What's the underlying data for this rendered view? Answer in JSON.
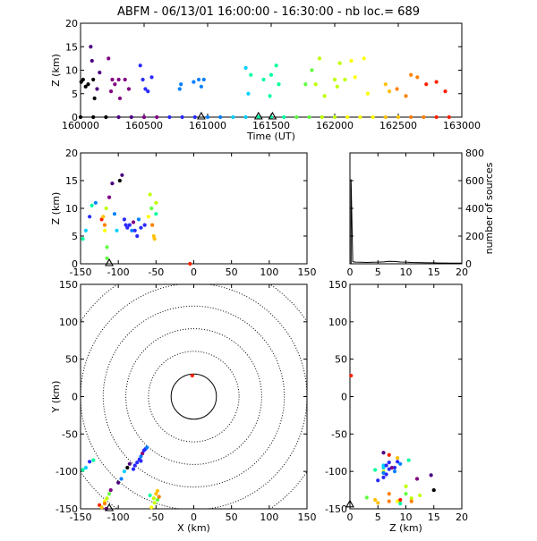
{
  "title": "ABFM - 06/13/01 16:00:00 - 16:30:00 - nb loc.=     689",
  "colors": {
    "palette": [
      "#000000",
      "#4b0082",
      "#800080",
      "#2a2aff",
      "#0080ff",
      "#00d0ff",
      "#00ffa0",
      "#60ff40",
      "#c0ff00",
      "#ffff00",
      "#ffc000",
      "#ff8000",
      "#ff2000"
    ]
  },
  "chart_data": [
    {
      "id": "time_height",
      "type": "scatter",
      "xlabel": "Time (UT)",
      "ylabel": "Z (km)",
      "xlim": [
        160000,
        163000
      ],
      "ylim": [
        0,
        20
      ],
      "xticks": [
        160000,
        160500,
        161000,
        161500,
        162000,
        162500,
        163000
      ],
      "yticks": [
        0,
        5,
        10,
        15,
        20
      ],
      "points": [
        [
          160005,
          7.5,
          0
        ],
        [
          160020,
          8,
          0
        ],
        [
          160040,
          6.5,
          0
        ],
        [
          160060,
          7,
          0
        ],
        [
          160080,
          15,
          1
        ],
        [
          160090,
          12,
          1
        ],
        [
          160100,
          8,
          0
        ],
        [
          160110,
          4,
          0
        ],
        [
          160130,
          6,
          1
        ],
        [
          160150,
          9.5,
          1
        ],
        [
          160220,
          12.5,
          2
        ],
        [
          160240,
          5.5,
          2
        ],
        [
          160250,
          8,
          2
        ],
        [
          160270,
          7,
          2
        ],
        [
          160300,
          8,
          2
        ],
        [
          160310,
          4,
          2
        ],
        [
          160350,
          8,
          2
        ],
        [
          160380,
          6,
          2
        ],
        [
          160470,
          11,
          3
        ],
        [
          160490,
          8,
          3
        ],
        [
          160510,
          6,
          3
        ],
        [
          160530,
          5.5,
          3
        ],
        [
          160560,
          8.5,
          3
        ],
        [
          160780,
          6,
          4
        ],
        [
          160790,
          7,
          4
        ],
        [
          160890,
          7.5,
          4
        ],
        [
          160930,
          8,
          4
        ],
        [
          160950,
          6.5,
          4
        ],
        [
          160970,
          8,
          4
        ],
        [
          161300,
          10.5,
          5
        ],
        [
          161320,
          5,
          5
        ],
        [
          161340,
          9,
          6
        ],
        [
          161440,
          8,
          6
        ],
        [
          161490,
          4.5,
          6
        ],
        [
          161500,
          9,
          6
        ],
        [
          161540,
          11,
          6
        ],
        [
          161560,
          7,
          6
        ],
        [
          161770,
          7,
          7
        ],
        [
          161820,
          10,
          7
        ],
        [
          161850,
          7,
          8
        ],
        [
          161880,
          12.5,
          8
        ],
        [
          161920,
          4.5,
          8
        ],
        [
          162000,
          8,
          8
        ],
        [
          162020,
          6.5,
          8
        ],
        [
          162040,
          11.5,
          8
        ],
        [
          162080,
          8,
          8
        ],
        [
          162130,
          12,
          9
        ],
        [
          162160,
          8.5,
          9
        ],
        [
          162230,
          12.5,
          9
        ],
        [
          162260,
          5,
          9
        ],
        [
          162400,
          7,
          10
        ],
        [
          162430,
          5.5,
          10
        ],
        [
          162490,
          6,
          11
        ],
        [
          162560,
          4.5,
          11
        ],
        [
          162600,
          9,
          11
        ],
        [
          162650,
          8.5,
          11
        ],
        [
          162720,
          7,
          12
        ],
        [
          162800,
          7.5,
          12
        ],
        [
          162870,
          5.5,
          12
        ]
      ],
      "baseline": [
        160000,
        160100,
        160200,
        160300,
        160400,
        160500,
        160600,
        160700,
        160800,
        160900,
        161000,
        161100,
        161200,
        161300,
        161400,
        161500,
        161600,
        161700,
        161800,
        161900,
        162000,
        162100,
        162200,
        162300,
        162400,
        162500,
        162600,
        162700,
        162800,
        162900
      ],
      "markers": [
        [
          160950,
          0
        ],
        [
          161400,
          0
        ],
        [
          161510,
          0
        ]
      ]
    },
    {
      "id": "x_z",
      "type": "scatter",
      "xlabel": "",
      "ylabel": "Z (km)",
      "xlim": [
        -150,
        150
      ],
      "ylim": [
        0,
        20
      ],
      "xticks": [
        -150,
        -100,
        -50,
        0,
        50,
        100,
        150
      ],
      "yticks": [
        0,
        5,
        10,
        15,
        20
      ],
      "points": [
        [
          -147,
          4.5,
          6
        ],
        [
          -143,
          6,
          5
        ],
        [
          -138,
          8.5,
          3
        ],
        [
          -135,
          10.5,
          6
        ],
        [
          -130,
          11,
          4
        ],
        [
          -122,
          8,
          12
        ],
        [
          -120,
          8.5,
          10
        ],
        [
          -118,
          6,
          9
        ],
        [
          -116,
          10,
          8
        ],
        [
          -115,
          3,
          7
        ],
        [
          -118,
          7,
          11
        ],
        [
          -115,
          1,
          7
        ],
        [
          -112,
          12,
          2
        ],
        [
          -108,
          14.5,
          1
        ],
        [
          -105,
          9,
          4
        ],
        [
          -102,
          6,
          5
        ],
        [
          -98,
          15,
          0
        ],
        [
          -95,
          16,
          1
        ],
        [
          -92,
          8,
          3
        ],
        [
          -90,
          7,
          3
        ],
        [
          -88,
          6.5,
          3
        ],
        [
          -85,
          7,
          3
        ],
        [
          -82,
          6,
          4
        ],
        [
          -80,
          7.5,
          2
        ],
        [
          -78,
          6,
          3
        ],
        [
          -75,
          5,
          3
        ],
        [
          -73,
          8,
          4
        ],
        [
          -70,
          6.5,
          3
        ],
        [
          -65,
          7,
          3
        ],
        [
          -60,
          8.5,
          9
        ],
        [
          -58,
          12.5,
          8
        ],
        [
          -56,
          10,
          7
        ],
        [
          -55,
          7,
          11
        ],
        [
          -53,
          5,
          10
        ],
        [
          -52,
          4.5,
          10
        ],
        [
          -50,
          9,
          6
        ],
        [
          -50,
          11,
          8
        ],
        [
          -5,
          0,
          12
        ]
      ],
      "markers": [
        [
          -112,
          0
        ]
      ]
    },
    {
      "id": "histogram",
      "type": "area",
      "xlabel": "",
      "ylabel": "number of sources",
      "xlim": [
        0,
        20
      ],
      "ylim": [
        0,
        800
      ],
      "xticks": [
        0,
        5,
        10,
        15,
        20
      ],
      "yticks": [
        0,
        200,
        400,
        600,
        800
      ],
      "bins": [
        [
          0.2,
          610
        ],
        [
          0.5,
          15
        ],
        [
          1,
          12
        ],
        [
          2,
          11
        ],
        [
          3,
          10
        ],
        [
          4,
          11
        ],
        [
          5,
          12
        ],
        [
          6,
          14
        ],
        [
          7,
          18
        ],
        [
          8,
          17
        ],
        [
          9,
          13
        ],
        [
          10,
          12
        ],
        [
          11,
          10
        ],
        [
          12,
          9
        ],
        [
          13,
          8
        ],
        [
          14,
          7
        ],
        [
          15,
          7
        ],
        [
          16,
          6
        ],
        [
          17,
          6
        ],
        [
          18,
          5
        ],
        [
          19,
          5
        ],
        [
          20,
          5
        ]
      ]
    },
    {
      "id": "x_y",
      "type": "scatter",
      "xlabel": "X (km)",
      "ylabel": "Y (km)",
      "xlim": [
        -150,
        150
      ],
      "ylim": [
        -150,
        150
      ],
      "xticks": [
        -150,
        -100,
        -50,
        0,
        50,
        100,
        150
      ],
      "yticks": [
        -150,
        -100,
        -50,
        0,
        50,
        100,
        150
      ],
      "rings": [
        30,
        60,
        90,
        120,
        150,
        180
      ],
      "points": [
        [
          -147,
          -98,
          6
        ],
        [
          -143,
          -95,
          5
        ],
        [
          -138,
          -87,
          3
        ],
        [
          -133,
          -85,
          6
        ],
        [
          -125,
          -145,
          12
        ],
        [
          -122,
          -148,
          10
        ],
        [
          -118,
          -140,
          9
        ],
        [
          -115,
          -136,
          8
        ],
        [
          -112,
          -130,
          7
        ],
        [
          -118,
          -143,
          11
        ],
        [
          -116,
          -150,
          2
        ],
        [
          -110,
          -125,
          2
        ],
        [
          -100,
          -115,
          1
        ],
        [
          -96,
          -110,
          4
        ],
        [
          -92,
          -100,
          5
        ],
        [
          -88,
          -95,
          0
        ],
        [
          -85,
          -90,
          1
        ],
        [
          -80,
          -97,
          3
        ],
        [
          -78,
          -92,
          3
        ],
        [
          -75,
          -88,
          3
        ],
        [
          -72,
          -84,
          3
        ],
        [
          -70,
          -80,
          4
        ],
        [
          -68,
          -76,
          2
        ],
        [
          -66,
          -72,
          3
        ],
        [
          -64,
          -70,
          3
        ],
        [
          -62,
          -68,
          4
        ],
        [
          -70,
          -86,
          3
        ],
        [
          -56,
          -148,
          9
        ],
        [
          -52,
          -142,
          8
        ],
        [
          -48,
          -138,
          7
        ],
        [
          -46,
          -134,
          11
        ],
        [
          -50,
          -130,
          10
        ],
        [
          -48,
          -126,
          10
        ],
        [
          -58,
          -132,
          6
        ],
        [
          -53,
          -136,
          8
        ],
        [
          -2,
          28,
          12
        ]
      ],
      "markers": [
        [
          -112,
          -150
        ]
      ]
    },
    {
      "id": "z_y",
      "type": "scatter",
      "xlabel": "Z (km)",
      "ylabel": "",
      "xlim": [
        0,
        20
      ],
      "ylim": [
        -150,
        150
      ],
      "xticks": [
        0,
        5,
        10,
        15,
        20
      ],
      "yticks": [
        -150,
        -100,
        -50,
        0,
        50,
        100,
        150
      ],
      "points": [
        [
          4.5,
          -98,
          6
        ],
        [
          6,
          -95,
          5
        ],
        [
          8.5,
          -87,
          3
        ],
        [
          10.5,
          -85,
          6
        ],
        [
          7,
          -78,
          12
        ],
        [
          8.5,
          -82,
          10
        ],
        [
          6,
          -100,
          9
        ],
        [
          10,
          -120,
          8
        ],
        [
          3,
          -135,
          7
        ],
        [
          7,
          -130,
          11
        ],
        [
          12,
          -110,
          2
        ],
        [
          14.5,
          -105,
          1
        ],
        [
          9,
          -90,
          4
        ],
        [
          6,
          -92,
          5
        ],
        [
          15,
          -125,
          0
        ],
        [
          6,
          -75,
          1
        ],
        [
          8,
          -95,
          3
        ],
        [
          7,
          -97,
          3
        ],
        [
          6.5,
          -92,
          3
        ],
        [
          7,
          -88,
          3
        ],
        [
          6,
          -102,
          4
        ],
        [
          7.5,
          -95,
          2
        ],
        [
          6,
          -108,
          3
        ],
        [
          5,
          -112,
          3
        ],
        [
          8,
          -100,
          4
        ],
        [
          6.5,
          -104,
          3
        ],
        [
          8.5,
          -140,
          9
        ],
        [
          12.5,
          -132,
          8
        ],
        [
          10,
          -130,
          7
        ],
        [
          7,
          -140,
          11
        ],
        [
          5,
          -142,
          10
        ],
        [
          4.5,
          -138,
          10
        ],
        [
          9,
          -143,
          6
        ],
        [
          11,
          -136,
          8
        ],
        [
          0.2,
          28,
          12
        ],
        [
          9,
          -138,
          12
        ],
        [
          11,
          -140,
          11
        ]
      ],
      "markers": [
        [
          0,
          -145
        ]
      ]
    }
  ]
}
